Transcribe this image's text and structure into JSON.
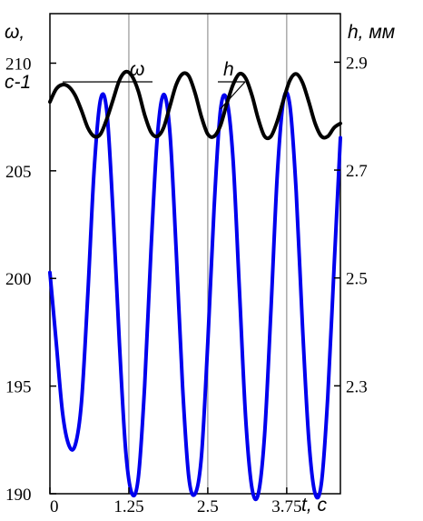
{
  "chart_data": {
    "type": "line",
    "title": "",
    "x_axis": {
      "label": "t, с",
      "range": [
        0,
        4.6
      ],
      "ticks": [
        0,
        1.25,
        2.5,
        3.75
      ],
      "tick_labels": [
        "0",
        "1.25",
        "2.5",
        "3.75"
      ]
    },
    "y_left": {
      "label_main": "ω,",
      "label_unit": "с-1",
      "range": [
        190,
        212.3
      ],
      "ticks": [
        190,
        195,
        200,
        205,
        210
      ],
      "tick_labels": [
        "190",
        "195",
        "200",
        "205",
        "210"
      ]
    },
    "y_right": {
      "label": "h, мм",
      "range": [
        2.1,
        2.99
      ],
      "ticks": [
        2.3,
        2.5,
        2.7,
        2.9
      ],
      "tick_labels": [
        "2.3",
        "2.5",
        "2.7",
        "2.9"
      ]
    },
    "grid": {
      "vertical": true,
      "horizontal": false
    },
    "series": [
      {
        "name": "ω",
        "axis": "left",
        "color": "#000000",
        "x": [
          0,
          0.1,
          0.2,
          0.3,
          0.4,
          0.5,
          0.6,
          0.7,
          0.8,
          0.9,
          1.0,
          1.1,
          1.2,
          1.3,
          1.4,
          1.5,
          1.6,
          1.7,
          1.8,
          1.9,
          2.0,
          2.1,
          2.2,
          2.3,
          2.4,
          2.5,
          2.6,
          2.7,
          2.8,
          2.9,
          3.0,
          3.1,
          3.2,
          3.3,
          3.4,
          3.5,
          3.6,
          3.7,
          3.8,
          3.9,
          4.0,
          4.1,
          4.2,
          4.3,
          4.4,
          4.5,
          4.6
        ],
        "values": [
          208.2,
          208.8,
          209.0,
          208.9,
          208.5,
          207.8,
          207.0,
          206.6,
          206.7,
          207.4,
          208.3,
          209.2,
          209.6,
          209.4,
          208.7,
          207.6,
          206.8,
          206.6,
          207.0,
          208.0,
          209.0,
          209.5,
          209.4,
          208.6,
          207.5,
          206.7,
          206.6,
          207.1,
          208.1,
          209.0,
          209.5,
          209.3,
          208.5,
          207.4,
          206.6,
          206.6,
          207.3,
          208.3,
          209.2,
          209.5,
          209.1,
          208.2,
          207.2,
          206.6,
          206.6,
          207.0,
          207.2
        ]
      },
      {
        "name": "h",
        "axis": "right",
        "color": "#0000ee",
        "x": [
          0,
          0.1,
          0.2,
          0.3,
          0.4,
          0.5,
          0.6,
          0.7,
          0.8,
          0.9,
          1.0,
          1.1,
          1.2,
          1.3,
          1.4,
          1.5,
          1.6,
          1.7,
          1.8,
          1.9,
          2.0,
          2.1,
          2.2,
          2.3,
          2.4,
          2.5,
          2.6,
          2.7,
          2.8,
          2.9,
          3.0,
          3.1,
          3.2,
          3.3,
          3.4,
          3.5,
          3.6,
          3.7,
          3.8,
          3.9,
          4.0,
          4.1,
          4.2,
          4.3,
          4.4,
          4.5,
          4.6
        ],
        "values": [
          2.51,
          2.38,
          2.25,
          2.19,
          2.19,
          2.27,
          2.47,
          2.7,
          2.83,
          2.81,
          2.62,
          2.38,
          2.18,
          2.1,
          2.13,
          2.3,
          2.55,
          2.76,
          2.84,
          2.77,
          2.55,
          2.3,
          2.13,
          2.1,
          2.17,
          2.38,
          2.63,
          2.81,
          2.83,
          2.72,
          2.48,
          2.24,
          2.11,
          2.1,
          2.21,
          2.44,
          2.69,
          2.83,
          2.82,
          2.66,
          2.41,
          2.2,
          2.1,
          2.12,
          2.28,
          2.52,
          2.76
        ]
      }
    ],
    "annotations": [
      {
        "text": "ω",
        "series": "ω"
      },
      {
        "text": "h",
        "series": "h"
      }
    ]
  }
}
